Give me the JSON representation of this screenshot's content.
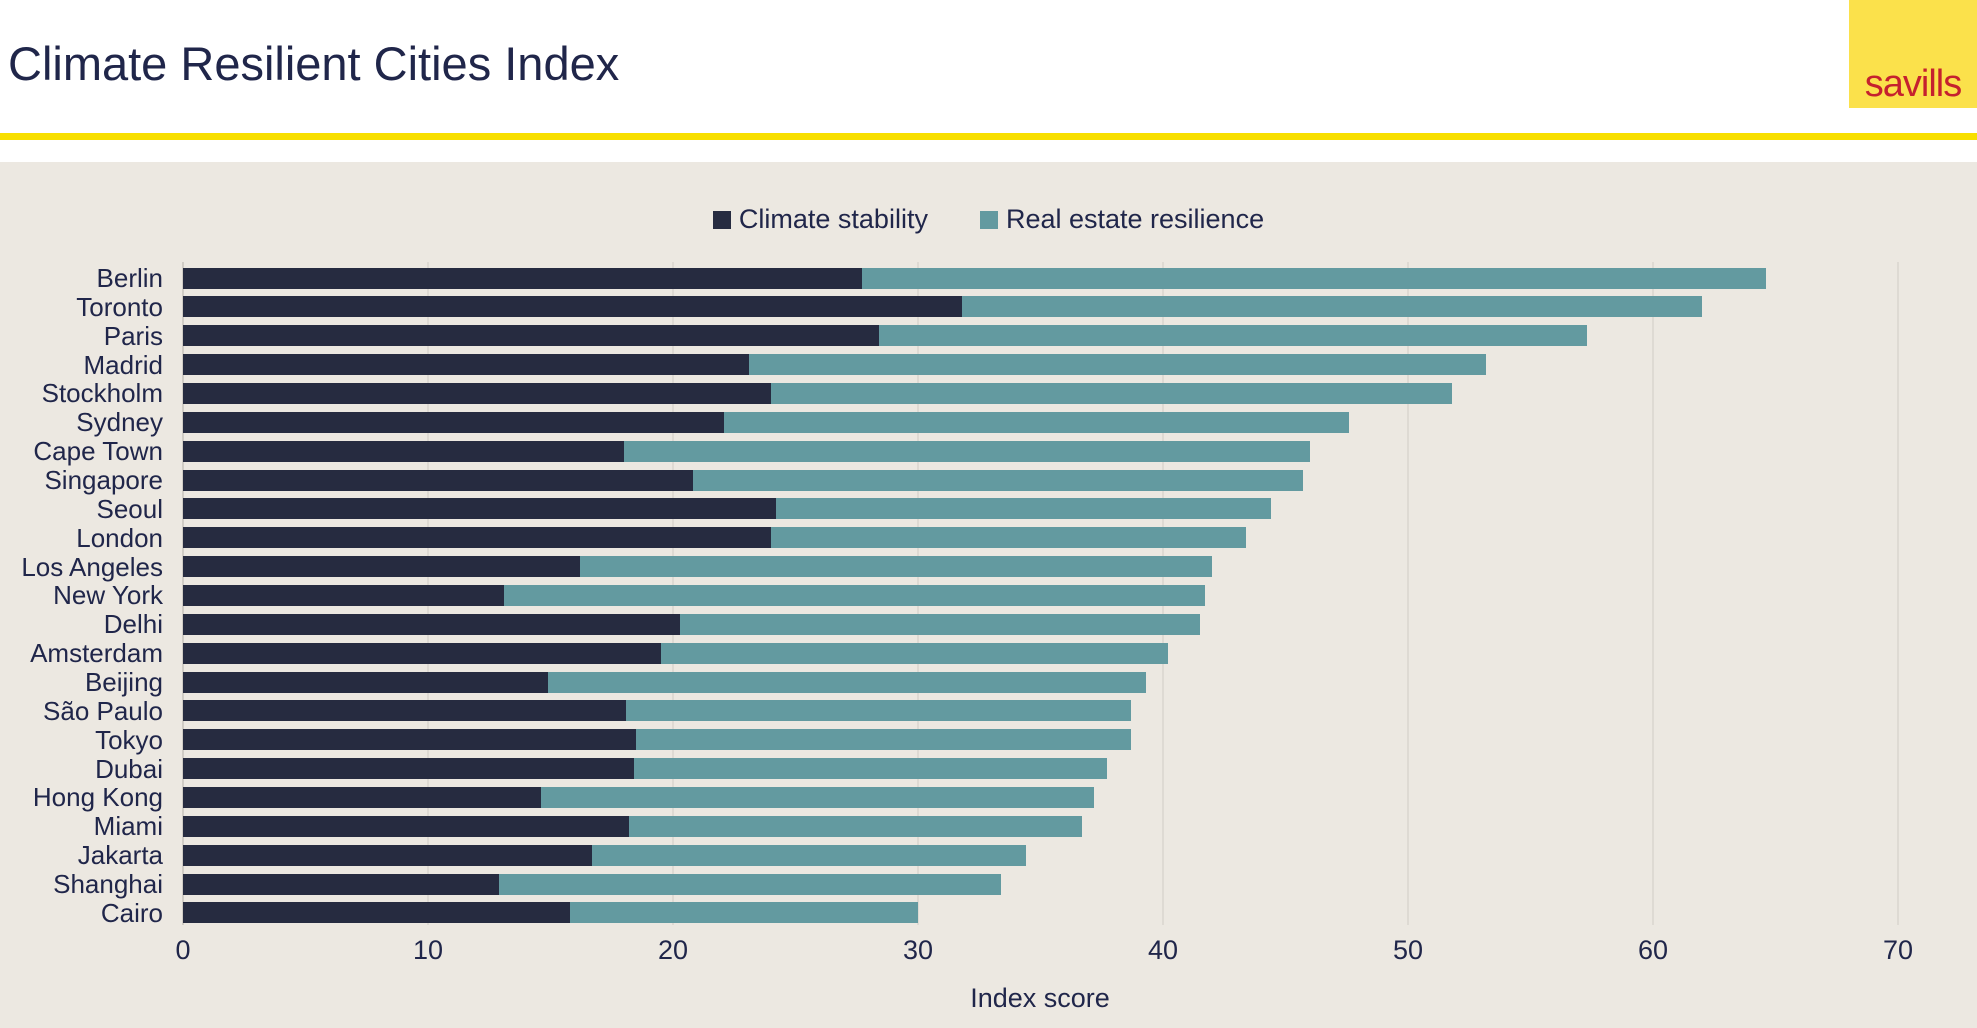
{
  "header": {
    "title": "Climate Resilient Cities Index",
    "logo_text": "savills",
    "brand_yellow": "#fbe14b",
    "brand_red": "#c5212e",
    "rule_yellow": "#f8df00"
  },
  "panel": {
    "background": "#ece8e1",
    "gridline_color": "#dedad3"
  },
  "chart_data": {
    "type": "bar",
    "orientation": "horizontal",
    "stacked": true,
    "title": "Climate Resilient Cities Index",
    "xlabel": "Index score",
    "xlim": [
      0,
      70
    ],
    "xticks": [
      0,
      10,
      20,
      30,
      40,
      50,
      60,
      70
    ],
    "grid": true,
    "legend_position": "top-center",
    "categories": [
      "Berlin",
      "Toronto",
      "Paris",
      "Madrid",
      "Stockholm",
      "Sydney",
      "Cape Town",
      "Singapore",
      "Seoul",
      "London",
      "Los Angeles",
      "New York",
      "Delhi",
      "Amsterdam",
      "Beijing",
      "São Paulo",
      "Tokyo",
      "Dubai",
      "Hong Kong",
      "Miami",
      "Jakarta",
      "Shanghai",
      "Cairo"
    ],
    "series": [
      {
        "name": "Climate stability",
        "color": "#262b40",
        "values": [
          27.7,
          31.8,
          28.4,
          23.1,
          24.0,
          22.1,
          18.0,
          20.8,
          24.2,
          24.0,
          16.2,
          13.1,
          20.3,
          19.5,
          14.9,
          18.1,
          18.5,
          18.4,
          14.6,
          18.2,
          16.7,
          12.9,
          15.8
        ]
      },
      {
        "name": "Real estate resilience",
        "color": "#639aa0",
        "values": [
          36.9,
          30.2,
          28.9,
          30.1,
          27.8,
          25.5,
          28.0,
          24.9,
          20.2,
          19.4,
          25.8,
          28.6,
          21.2,
          20.7,
          24.4,
          20.6,
          20.2,
          19.3,
          22.6,
          18.5,
          17.7,
          20.5,
          14.2
        ]
      }
    ],
    "totals": [
      64.6,
      62.0,
      57.3,
      53.2,
      51.8,
      47.6,
      46.0,
      45.7,
      44.4,
      43.4,
      42.0,
      41.7,
      41.5,
      40.2,
      39.3,
      38.7,
      38.7,
      37.7,
      37.2,
      36.7,
      34.4,
      33.4,
      29.9
    ]
  }
}
